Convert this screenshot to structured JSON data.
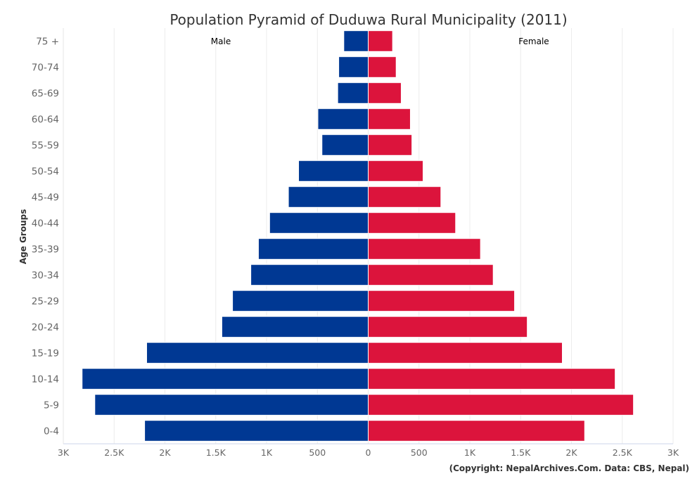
{
  "chart_data": {
    "type": "bar",
    "orientation": "horizontal",
    "title": "Population Pyramid of Duduwa Rural Municipality (2011)",
    "ylabel": "Age Groups",
    "xlabel": "",
    "xlim": [
      -3000,
      3000
    ],
    "x_ticks": [
      "3K",
      "2.5K",
      "2K",
      "1.5K",
      "1K",
      "500",
      "0",
      "500",
      "1K",
      "1.5K",
      "2K",
      "2.5K",
      "3K"
    ],
    "grid": true,
    "categories": [
      "75 +",
      "70-74",
      "65-69",
      "60-64",
      "55-59",
      "50-54",
      "45-49",
      "40-44",
      "35-39",
      "30-34",
      "25-29",
      "20-24",
      "15-19",
      "10-14",
      "5-9",
      "0-4"
    ],
    "series": [
      {
        "name": "Male",
        "color": "#003893",
        "values": [
          240,
          290,
          300,
          495,
          455,
          685,
          785,
          970,
          1080,
          1155,
          1335,
          1440,
          2180,
          2815,
          2690,
          2200
        ]
      },
      {
        "name": "Female",
        "color": "#DC143C",
        "values": [
          240,
          275,
          325,
          415,
          430,
          540,
          715,
          860,
          1105,
          1230,
          1440,
          1565,
          1910,
          2430,
          2610,
          2130
        ]
      }
    ],
    "credit": "(Copyright: NepalArchives.Com. Data: CBS, Nepal)"
  }
}
